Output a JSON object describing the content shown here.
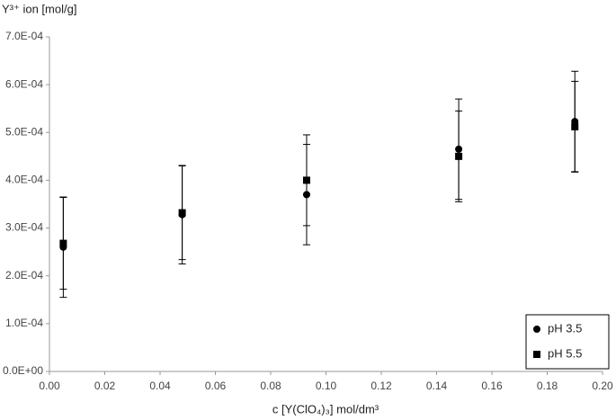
{
  "chart_data": {
    "type": "scatter",
    "y_label": "Y³⁺ ion [mol/g]",
    "x_label": "c [Y(ClO₄)₃] mol/dm³",
    "xlim": [
      0,
      0.2
    ],
    "xticks": [
      {
        "value": 0,
        "label": "0.00"
      },
      0.02,
      0.04,
      0.06,
      0.08,
      {
        "value": 0.1,
        "label": "0.10"
      },
      0.12,
      0.14,
      0.16,
      0.18,
      {
        "value": 0.2,
        "label": "0.20"
      }
    ],
    "ylim": [
      0,
      0.0007
    ],
    "yticks": [
      {
        "value": 0,
        "label": "0.0E+00"
      },
      {
        "value": 0.0001,
        "label": "1.0E-04"
      },
      {
        "value": 0.0002,
        "label": "2.0E-04"
      },
      {
        "value": 0.0003,
        "label": "3.0E-04"
      },
      {
        "value": 0.0004,
        "label": "4.0E-04"
      },
      {
        "value": 0.0005,
        "label": "5.0E-04"
      },
      {
        "value": 0.0006,
        "label": "6.0E-04"
      },
      {
        "value": 0.0007,
        "label": "7.0E-04"
      }
    ],
    "legend": "bottom-right",
    "series": [
      {
        "name": "pH 3.5",
        "marker": "circle",
        "color": "#000000",
        "x": [
          0.005,
          0.048,
          0.093,
          0.148,
          0.19
        ],
        "values": [
          0.00026,
          0.000328,
          0.00037,
          0.000465,
          0.000523
        ],
        "errors": [
          0.000105,
          0.000103,
          0.000105,
          0.000105,
          0.000105
        ]
      },
      {
        "name": "pH 5.5",
        "marker": "square",
        "color": "#000000",
        "x": [
          0.005,
          0.048,
          0.093,
          0.148,
          0.19
        ],
        "values": [
          0.000268,
          0.000332,
          0.0004,
          0.00045,
          0.000512
        ],
        "errors": [
          9.6e-05,
          9.8e-05,
          9.5e-05,
          9.5e-05,
          9.5e-05
        ]
      }
    ]
  }
}
